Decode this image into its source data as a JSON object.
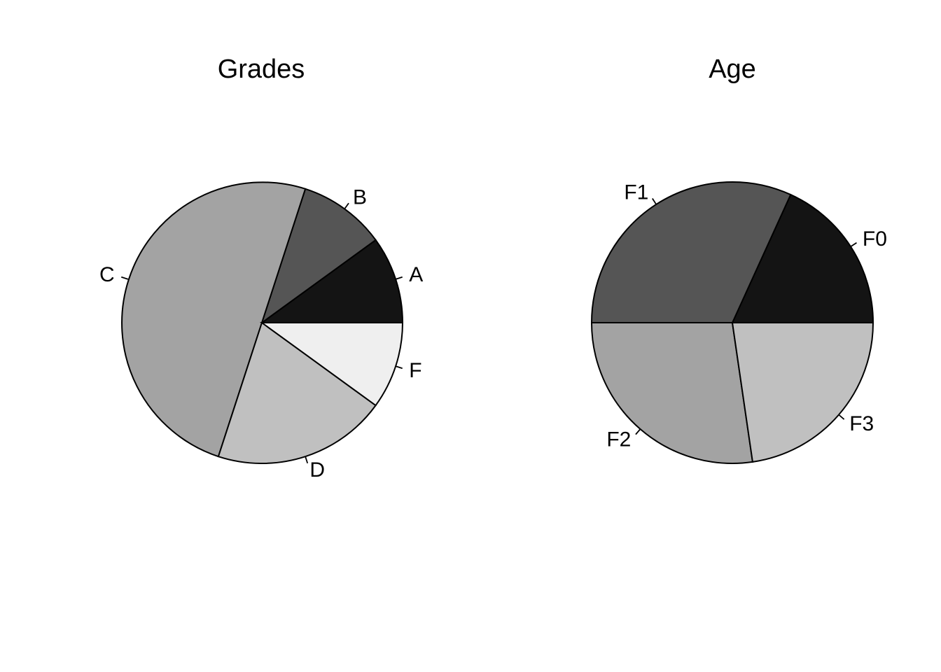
{
  "chart_data": [
    {
      "type": "pie",
      "title": "Grades",
      "slices": [
        {
          "label": "A",
          "value": 10,
          "color": "#141414"
        },
        {
          "label": "B",
          "value": 10,
          "color": "#555555"
        },
        {
          "label": "C",
          "value": 50,
          "color": "#a3a3a3"
        },
        {
          "label": "D",
          "value": 20,
          "color": "#c0c0c0"
        },
        {
          "label": "F",
          "value": 10,
          "color": "#efefef"
        }
      ]
    },
    {
      "type": "pie",
      "title": "Age",
      "slices": [
        {
          "label": "F0",
          "value": 18.2,
          "color": "#141414"
        },
        {
          "label": "F1",
          "value": 31.8,
          "color": "#555555"
        },
        {
          "label": "F2",
          "value": 27.3,
          "color": "#a3a3a3"
        },
        {
          "label": "F3",
          "value": 22.7,
          "color": "#c0c0c0"
        }
      ]
    }
  ]
}
